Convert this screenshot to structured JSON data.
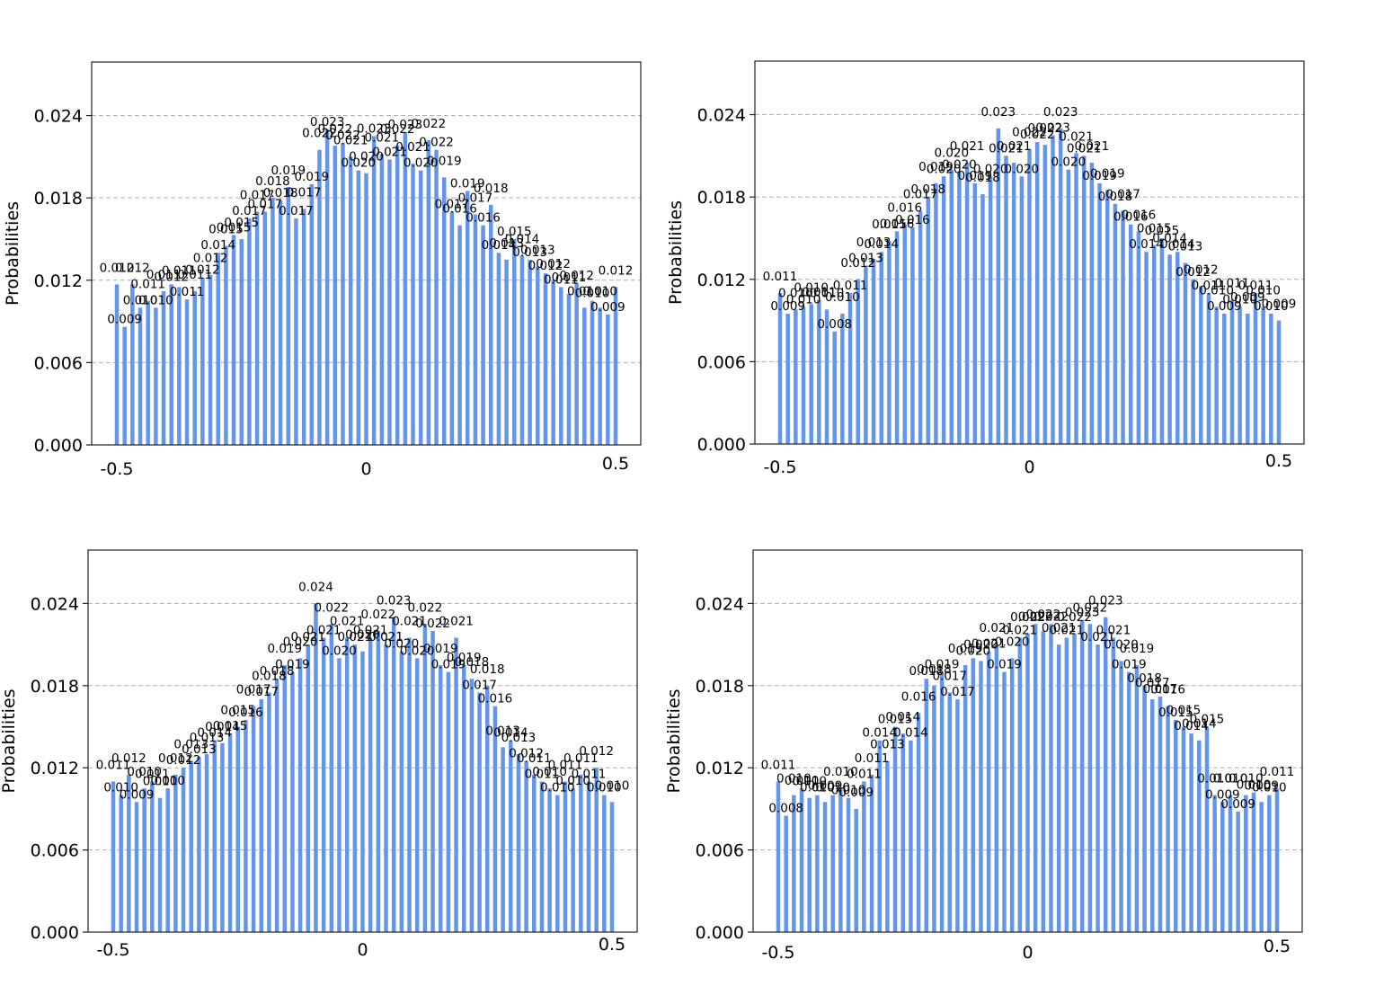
{
  "chart_data": [
    {
      "type": "bar",
      "ylabel": "Probabilities",
      "x_tick_labels": [
        "-0.5",
        "0",
        "0.5"
      ],
      "y_tick_labels": [
        "0.000",
        "0.006",
        "0.012",
        "0.018",
        "0.024"
      ],
      "ylim": [
        0,
        0.0279
      ],
      "grid": true,
      "bar_color": "#6495ed",
      "values": [
        0.0117,
        0.0086,
        0.0117,
        0.01,
        0.0105,
        0.01,
        0.0112,
        0.0117,
        0.0115,
        0.0106,
        0.0112,
        0.0122,
        0.0124,
        0.014,
        0.0145,
        0.0153,
        0.015,
        0.0165,
        0.017,
        0.017,
        0.018,
        0.0178,
        0.0188,
        0.0165,
        0.0172,
        0.019,
        0.0215,
        0.023,
        0.0218,
        0.022,
        0.021,
        0.02,
        0.0198,
        0.0225,
        0.0212,
        0.0208,
        0.0218,
        0.0228,
        0.0205,
        0.02,
        0.0222,
        0.0215,
        0.0195,
        0.017,
        0.016,
        0.0185,
        0.0168,
        0.016,
        0.0175,
        0.014,
        0.0135,
        0.015,
        0.0138,
        0.0135,
        0.013,
        0.0125,
        0.012,
        0.0115,
        0.011,
        0.0118,
        0.01,
        0.0105,
        0.01,
        0.0095,
        0.0115
      ],
      "bar_labels": [
        "0.012",
        "0.009",
        "0.012",
        "0.010",
        "0.011",
        "0.010",
        "0.011",
        "0.012",
        "0.011",
        "0.011",
        "0.011",
        "0.012",
        "0.012",
        "0.014",
        "0.015",
        "0.015",
        "0.015",
        "0.017",
        "0.017",
        "0.017",
        "0.018",
        "0.018",
        "0.019",
        "0.017",
        "0.017",
        "0.019",
        "0.022",
        "0.023",
        "0.022",
        "0.022",
        "0.021",
        "0.020",
        "0.020",
        "0.023",
        "0.021",
        "0.021",
        "0.022",
        "0.023",
        "0.021",
        "0.020",
        "0.022",
        "0.022",
        "0.019",
        "0.017",
        "0.016",
        "0.019",
        "0.017",
        "0.016",
        "0.018",
        "0.014",
        "0.013",
        "0.015",
        "0.014",
        "0.013",
        "0.013",
        "0.012",
        "0.012",
        "0.011",
        "0.011",
        "0.012",
        "0.010",
        "0.010",
        "0.010",
        "0.009",
        "0.012"
      ]
    },
    {
      "type": "bar",
      "ylabel": "Probabilities",
      "x_tick_labels": [
        "-0.5",
        "0",
        "0.5"
      ],
      "y_tick_labels": [
        "0.000",
        "0.006",
        "0.012",
        "0.018",
        "0.024"
      ],
      "ylim": [
        0,
        0.0279
      ],
      "grid": true,
      "bar_color": "#6495ed",
      "values": [
        0.011,
        0.0095,
        0.0098,
        0.01,
        0.0102,
        0.0105,
        0.0098,
        0.0082,
        0.0095,
        0.011,
        0.012,
        0.013,
        0.0135,
        0.014,
        0.0148,
        0.0155,
        0.016,
        0.0158,
        0.017,
        0.018,
        0.019,
        0.0195,
        0.02,
        0.0198,
        0.0205,
        0.019,
        0.0182,
        0.0195,
        0.023,
        0.021,
        0.0205,
        0.0195,
        0.0215,
        0.022,
        0.0218,
        0.0225,
        0.023,
        0.02,
        0.0212,
        0.021,
        0.0205,
        0.019,
        0.0185,
        0.0175,
        0.017,
        0.016,
        0.0155,
        0.014,
        0.0145,
        0.015,
        0.0138,
        0.014,
        0.0132,
        0.012,
        0.0115,
        0.011,
        0.01,
        0.0095,
        0.0105,
        0.01,
        0.0095,
        0.011,
        0.01,
        0.0095,
        0.009
      ],
      "bar_labels": [
        "0.011",
        "0.009",
        "0.010",
        "0.010",
        "0.010",
        "0.011",
        "0.010",
        "0.008",
        "0.010",
        "0.011",
        "0.012",
        "0.013",
        "0.013",
        "0.014",
        "0.015",
        "0.016",
        "0.016",
        "0.016",
        "0.017",
        "0.018",
        "0.019",
        "0.020",
        "0.020",
        "0.020",
        "0.021",
        "0.019",
        "0.018",
        "0.020",
        "0.023",
        "0.021",
        "0.021",
        "0.020",
        "0.022",
        "0.022",
        "0.022",
        "0.023",
        "0.023",
        "0.020",
        "0.021",
        "0.021",
        "0.021",
        "0.019",
        "0.019",
        "0.018",
        "0.017",
        "0.016",
        "0.016",
        "0.014",
        "0.015",
        "0.015",
        "0.014",
        "0.014",
        "0.013",
        "0.012",
        "0.012",
        "0.011",
        "0.010",
        "0.009",
        "0.011",
        "0.010",
        "0.009",
        "0.011",
        "0.010",
        "0.010",
        "0.009"
      ]
    },
    {
      "type": "bar",
      "ylabel": "Probabilities",
      "x_tick_labels": [
        "-0.5",
        "0",
        "0.5"
      ],
      "y_tick_labels": [
        "0.000",
        "0.006",
        "0.012",
        "0.018",
        "0.024"
      ],
      "ylim": [
        0,
        0.0279
      ],
      "grid": true,
      "bar_color": "#6495ed",
      "values": [
        0.011,
        0.01,
        0.0115,
        0.0095,
        0.0105,
        0.011,
        0.0098,
        0.0105,
        0.0115,
        0.012,
        0.0125,
        0.0128,
        0.013,
        0.014,
        0.0138,
        0.0145,
        0.015,
        0.0155,
        0.0165,
        0.017,
        0.0175,
        0.0185,
        0.0195,
        0.019,
        0.02,
        0.021,
        0.024,
        0.0215,
        0.0225,
        0.02,
        0.0215,
        0.021,
        0.0205,
        0.0215,
        0.022,
        0.021,
        0.023,
        0.0205,
        0.0215,
        0.02,
        0.0225,
        0.022,
        0.0195,
        0.019,
        0.0215,
        0.0195,
        0.0185,
        0.0175,
        0.018,
        0.0165,
        0.0135,
        0.014,
        0.013,
        0.0125,
        0.0115,
        0.011,
        0.0105,
        0.01,
        0.011,
        0.0105,
        0.0115,
        0.011,
        0.012,
        0.01,
        0.0095
      ],
      "bar_labels": [
        "0.011",
        "0.010",
        "0.012",
        "0.009",
        "0.010",
        "0.011",
        "0.010",
        "0.010",
        "0.012",
        "0.012",
        "0.013",
        "0.013",
        "0.013",
        "0.014",
        "0.014",
        "0.015",
        "0.015",
        "0.016",
        "0.017",
        "0.017",
        "0.018",
        "0.018",
        "0.019",
        "0.019",
        "0.020",
        "0.021",
        "0.024",
        "0.021",
        "0.022",
        "0.020",
        "0.021",
        "0.021",
        "0.020",
        "0.021",
        "0.022",
        "0.021",
        "0.023",
        "0.020",
        "0.021",
        "0.020",
        "0.022",
        "0.022",
        "0.019",
        "0.019",
        "0.021",
        "0.019",
        "0.018",
        "0.017",
        "0.018",
        "0.016",
        "0.013",
        "0.014",
        "0.013",
        "0.012",
        "0.011",
        "0.011",
        "0.010",
        "0.010",
        "0.011",
        "0.010",
        "0.011",
        "0.011",
        "0.012",
        "0.010",
        "0.010"
      ]
    },
    {
      "type": "bar",
      "ylabel": "Probabilities",
      "x_tick_labels": [
        "-0.5",
        "0",
        "0.5"
      ],
      "y_tick_labels": [
        "0.000",
        "0.006",
        "0.012",
        "0.018",
        "0.024"
      ],
      "ylim": [
        0,
        0.0279
      ],
      "grid": true,
      "bar_color": "#6495ed",
      "values": [
        0.011,
        0.0085,
        0.01,
        0.0105,
        0.0098,
        0.01,
        0.0095,
        0.01,
        0.0105,
        0.0098,
        0.009,
        0.011,
        0.0115,
        0.014,
        0.0125,
        0.015,
        0.0145,
        0.014,
        0.016,
        0.0185,
        0.018,
        0.019,
        0.0175,
        0.017,
        0.0195,
        0.02,
        0.0198,
        0.0205,
        0.021,
        0.019,
        0.02,
        0.0215,
        0.0218,
        0.0225,
        0.022,
        0.0225,
        0.021,
        0.0215,
        0.0218,
        0.0228,
        0.0225,
        0.021,
        0.023,
        0.0215,
        0.0198,
        0.019,
        0.0195,
        0.018,
        0.017,
        0.0172,
        0.0165,
        0.0155,
        0.015,
        0.0145,
        0.014,
        0.015,
        0.01,
        0.0095,
        0.01,
        0.0088,
        0.01,
        0.0102,
        0.0095,
        0.01,
        0.0105
      ],
      "bar_labels": [
        "0.011",
        "0.008",
        "0.010",
        "0.010",
        "0.010",
        "0.010",
        "0.009",
        "0.010",
        "0.010",
        "0.010",
        "0.009",
        "0.011",
        "0.011",
        "0.014",
        "0.013",
        "0.015",
        "0.014",
        "0.014",
        "0.016",
        "0.018",
        "0.018",
        "0.019",
        "0.017",
        "0.017",
        "0.019",
        "0.020",
        "0.020",
        "0.021",
        "0.021",
        "0.019",
        "0.020",
        "0.021",
        "0.022",
        "0.022",
        "0.022",
        "0.022",
        "0.021",
        "0.021",
        "0.022",
        "0.023",
        "0.022",
        "0.021",
        "0.023",
        "0.021",
        "0.020",
        "0.019",
        "0.019",
        "0.018",
        "0.017",
        "0.017",
        "0.016",
        "0.015",
        "0.015",
        "0.014",
        "0.014",
        "0.015",
        "0.010",
        "0.009",
        "0.010",
        "0.009",
        "0.010",
        "0.010",
        "0.009",
        "0.010",
        "0.011"
      ]
    }
  ]
}
